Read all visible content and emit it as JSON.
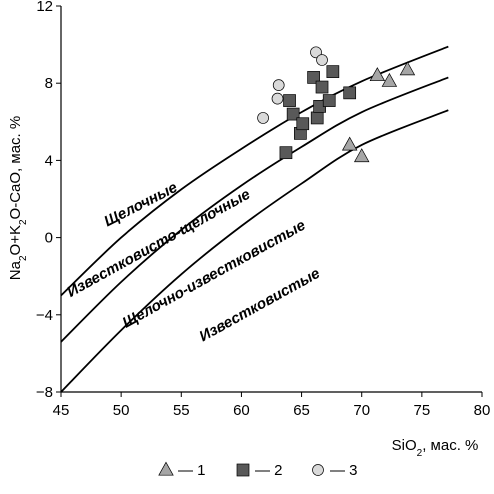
{
  "chart_data": {
    "type": "scatter",
    "xlabel": "SiO",
    "xlabel_sub": "2",
    "xlabel_suffix": ", мас. %",
    "ylabel_parts": [
      "Na",
      "2",
      "O+K",
      "2",
      "O-CaO, мас. %"
    ],
    "xlim": [
      45,
      80
    ],
    "ylim": [
      -8,
      12
    ],
    "xticks": [
      45,
      50,
      55,
      60,
      65,
      70,
      75,
      80
    ],
    "yticks": [
      -8,
      -4,
      0,
      4,
      8,
      12
    ],
    "grid": false,
    "legend_placement": "bottom",
    "boundary_lines": [
      [
        [
          45,
          -3.0
        ],
        [
          50,
          0.0
        ],
        [
          55,
          2.5
        ],
        [
          60,
          4.6
        ],
        [
          65,
          6.5
        ],
        [
          70,
          8.1
        ],
        [
          77.2,
          9.9
        ]
      ],
      [
        [
          45,
          -5.4
        ],
        [
          50,
          -2.3
        ],
        [
          55,
          0.4
        ],
        [
          60,
          2.7
        ],
        [
          65,
          4.7
        ],
        [
          70,
          6.5
        ],
        [
          77.2,
          8.3
        ]
      ],
      [
        [
          45,
          -8.0
        ],
        [
          50,
          -4.8
        ],
        [
          55,
          -1.9
        ],
        [
          60,
          0.6
        ],
        [
          65,
          2.8
        ],
        [
          70,
          4.8
        ],
        [
          77.2,
          6.6
        ]
      ]
    ],
    "region_labels": [
      {
        "text": "Щелочные",
        "x": 51.8,
        "y": 1.5,
        "rotation": -27
      },
      {
        "text": "Известковисто-щелочные",
        "x": 53.3,
        "y": -0.5,
        "rotation": -29
      },
      {
        "text": "Щелочно-известковистые",
        "x": 57.9,
        "y": -2.1,
        "rotation": -29
      },
      {
        "text": "Известковистые",
        "x": 61.7,
        "y": -3.7,
        "rotation": -29
      }
    ],
    "series": [
      {
        "name": "1",
        "marker": "triangle",
        "color": "#a6a6a6",
        "points": [
          [
            69.0,
            4.8
          ],
          [
            70.0,
            4.2
          ],
          [
            71.3,
            8.4
          ],
          [
            72.3,
            8.1
          ],
          [
            73.8,
            8.7
          ]
        ]
      },
      {
        "name": "2",
        "marker": "square",
        "color": "#595959",
        "points": [
          [
            63.7,
            4.4
          ],
          [
            64.0,
            7.1
          ],
          [
            64.3,
            6.4
          ],
          [
            64.9,
            5.4
          ],
          [
            65.1,
            5.9
          ],
          [
            66.0,
            8.3
          ],
          [
            66.3,
            6.2
          ],
          [
            66.5,
            6.8
          ],
          [
            66.7,
            7.8
          ],
          [
            67.3,
            7.1
          ],
          [
            67.6,
            8.6
          ],
          [
            69.0,
            7.5
          ]
        ]
      },
      {
        "name": "3",
        "marker": "circle",
        "color": "#d9d9d9",
        "points": [
          [
            61.8,
            6.2
          ],
          [
            63.0,
            7.2
          ],
          [
            63.1,
            7.9
          ],
          [
            66.2,
            9.6
          ],
          [
            66.7,
            9.2
          ]
        ]
      }
    ],
    "legend": {
      "separator": "—"
    }
  }
}
